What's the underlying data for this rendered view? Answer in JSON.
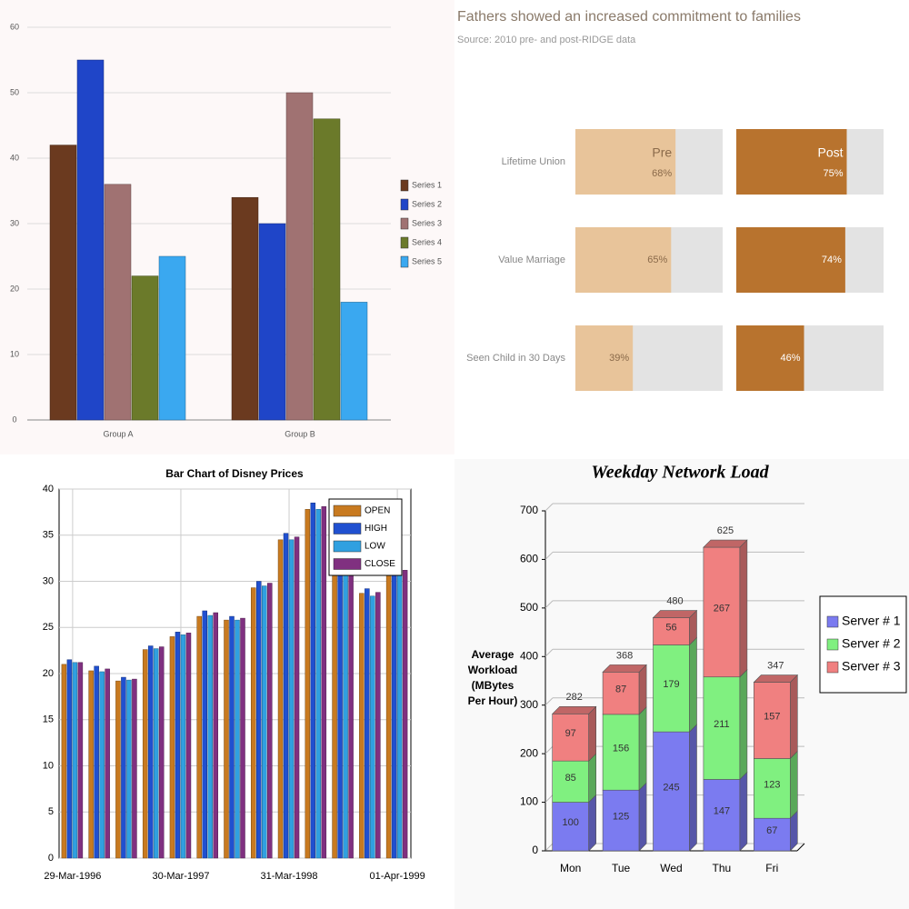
{
  "chart_data": [
    {
      "type": "bar",
      "categories": [
        "Group A",
        "Group B"
      ],
      "series": [
        {
          "name": "Series 1",
          "color": "#6b3a1f",
          "values": [
            42,
            34
          ]
        },
        {
          "name": "Series 2",
          "color": "#1f45c8",
          "values": [
            55,
            30
          ]
        },
        {
          "name": "Series 3",
          "color": "#a07272",
          "values": [
            36,
            50
          ]
        },
        {
          "name": "Series 4",
          "color": "#6b7a2a",
          "values": [
            22,
            46
          ]
        },
        {
          "name": "Series 5",
          "color": "#3aa8f0",
          "values": [
            25,
            18
          ]
        }
      ],
      "ylim": [
        0,
        60
      ],
      "yticks": [
        0,
        10,
        20,
        30,
        40,
        50,
        60
      ],
      "grid": true,
      "legend": "right"
    },
    {
      "type": "bar",
      "orientation": "horizontal",
      "title": "Fathers showed an increased commitment to families",
      "subtitle": "Source: 2010 pre- and post-RIDGE data",
      "categories": [
        "Lifetime Union",
        "Value Marriage",
        "Seen Child in 30 Days"
      ],
      "series": [
        {
          "name": "Pre",
          "color": "#e8c49a",
          "values": [
            68,
            65,
            39
          ],
          "value_labels": [
            "68%",
            "65%",
            "39%"
          ]
        },
        {
          "name": "Post",
          "color": "#b8732e",
          "values": [
            75,
            74,
            46
          ],
          "value_labels": [
            "75%",
            "74%",
            "46%"
          ]
        }
      ],
      "xlim": [
        0,
        100
      ]
    },
    {
      "type": "bar",
      "title": "Bar Chart of Disney Prices",
      "categories": [
        "29-Mar-1996",
        null,
        null,
        null,
        "30-Mar-1997",
        null,
        null,
        null,
        "31-Mar-1998",
        null,
        null,
        null,
        "01-Apr-1999"
      ],
      "series": [
        {
          "name": "OPEN",
          "color": "#c87a20",
          "values": [
            21,
            20.3,
            19.2,
            22.6,
            24,
            26.2,
            25.8,
            29.3,
            34.5,
            37.8,
            33,
            28.7,
            31
          ]
        },
        {
          "name": "HIGH",
          "color": "#2050d0",
          "values": [
            21.5,
            20.8,
            19.6,
            23,
            24.5,
            26.8,
            26.2,
            30,
            35.2,
            38.5,
            33.5,
            29.2,
            31.5
          ]
        },
        {
          "name": "LOW",
          "color": "#30a0e0",
          "values": [
            21.2,
            20.2,
            19.3,
            22.7,
            24.2,
            26.3,
            25.8,
            29.5,
            34.5,
            37.8,
            32.8,
            28.4,
            30.8
          ]
        },
        {
          "name": "CLOSE",
          "color": "#803080",
          "values": [
            21.2,
            20.5,
            19.4,
            22.9,
            24.4,
            26.6,
            26,
            29.8,
            34.8,
            38.1,
            33.2,
            28.8,
            31.2
          ]
        }
      ],
      "ylim": [
        0,
        40
      ],
      "yticks": [
        0,
        5,
        10,
        15,
        20,
        25,
        30,
        35,
        40
      ],
      "grid": true,
      "legend": "upper right"
    },
    {
      "type": "stacked_bar",
      "title": "Weekday Network Load",
      "ylabel": "Average Workload (MBytes Per Hour)",
      "categories": [
        "Mon",
        "Tue",
        "Wed",
        "Thu",
        "Fri"
      ],
      "series": [
        {
          "name": "Server # 1",
          "color": "#7b7bf0",
          "values": [
            100,
            125,
            245,
            147,
            67
          ]
        },
        {
          "name": "Server # 2",
          "color": "#80f080",
          "values": [
            85,
            156,
            179,
            211,
            123
          ]
        },
        {
          "name": "Server # 3",
          "color": "#f08080",
          "values": [
            97,
            87,
            56,
            267,
            157
          ]
        }
      ],
      "totals": [
        282,
        368,
        480,
        625,
        347
      ],
      "ylim": [
        0,
        700
      ],
      "yticks": [
        0,
        100,
        200,
        300,
        400,
        500,
        600,
        700
      ],
      "grid": true,
      "legend": "right"
    }
  ]
}
